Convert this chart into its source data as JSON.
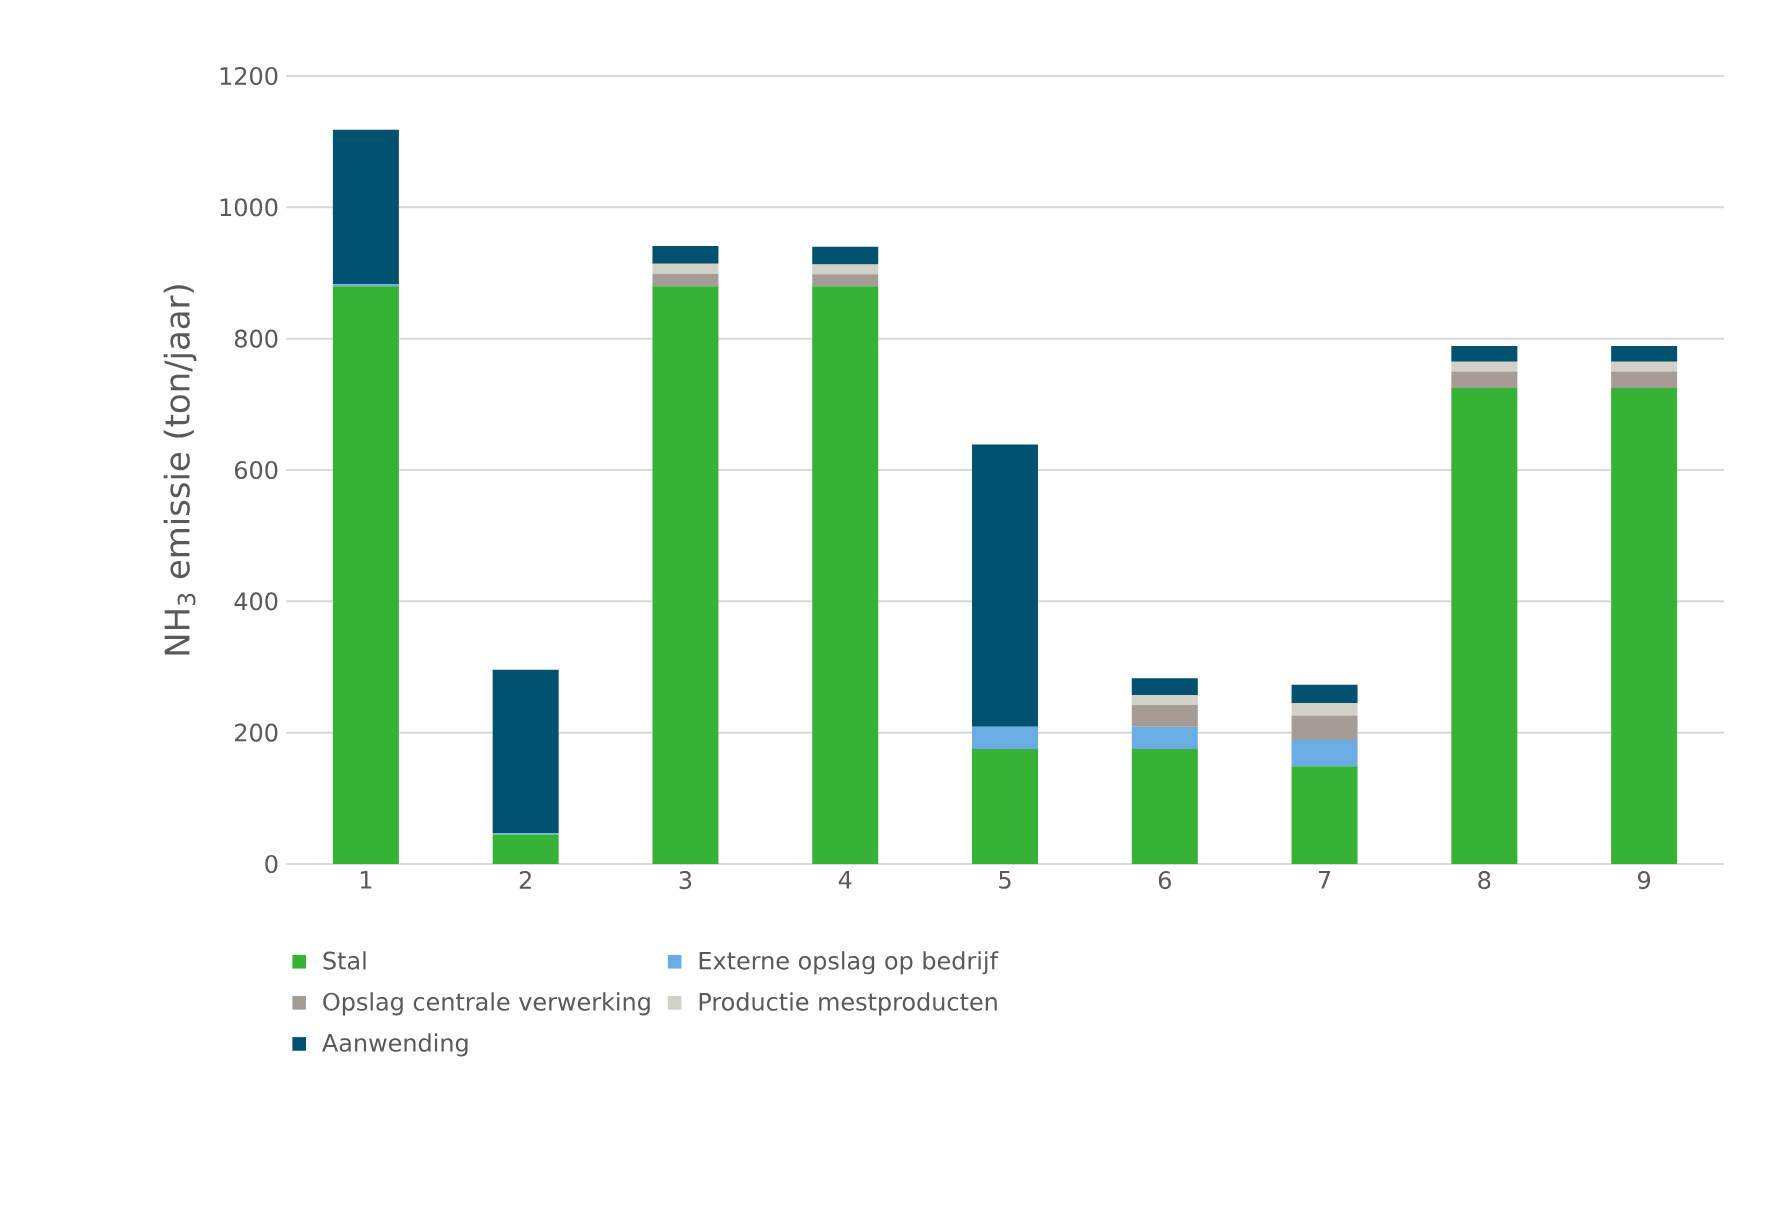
{
  "chart_data": {
    "type": "bar",
    "stacked": true,
    "ylabel": "NH$_{3}$ emissie (ton/jaar)",
    "categories": [
      "1",
      "2",
      "3",
      "4",
      "5",
      "6",
      "7",
      "8",
      "9"
    ],
    "series": [
      {
        "name": "Stal",
        "color": "#36b336",
        "values": [
          880,
          45,
          880,
          880,
          175,
          175,
          149,
          725,
          725
        ]
      },
      {
        "name": "Externe opslag op bedrijf",
        "color": "#6aade4",
        "values": [
          3,
          2,
          0,
          0,
          34,
          34,
          40,
          0,
          0
        ]
      },
      {
        "name": "Opslag centrale verwerking",
        "color": "#a59d95",
        "values": [
          0,
          0,
          19,
          18,
          0,
          33,
          37,
          25,
          25
        ]
      },
      {
        "name": "Productie mestproducten",
        "color": "#d3d0c8",
        "values": [
          0,
          0,
          15,
          15,
          0,
          15,
          19,
          15,
          15
        ]
      },
      {
        "name": "Aanwending",
        "color": "#00506f",
        "values": [
          235,
          249,
          27,
          27,
          430,
          26,
          28,
          24,
          24
        ]
      }
    ],
    "ylim": [
      0,
      1200
    ],
    "yticks": [
      0,
      200,
      400,
      600,
      800,
      1000,
      1200
    ],
    "grid": "y",
    "legend": "bottom"
  }
}
